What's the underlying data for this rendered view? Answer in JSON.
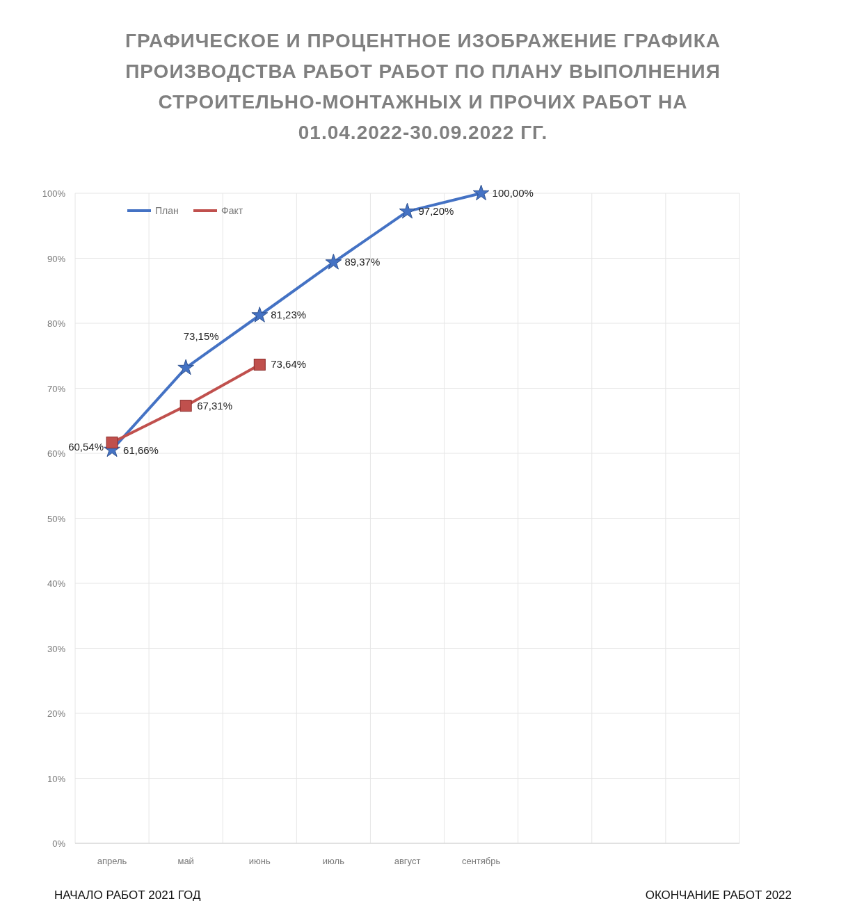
{
  "chart_data": {
    "type": "line",
    "title": "ГРАФИЧЕСКОЕ И ПРОЦЕНТНОЕ ИЗОБРАЖЕНИЕ ГРАФИКА ПРОИЗВОДСТВА РАБОТ РАБОТ ПО ПЛАНУ ВЫПОЛНЕНИЯ СТРОИТЕЛЬНО-МОНТАЖНЫХ И ПРОЧИХ РАБОТ НА 01.04.2022-30.09.2022 ГГ.",
    "categories": [
      "апрель",
      "май",
      "июнь",
      "июль",
      "август",
      "сентябрь",
      null,
      null,
      null
    ],
    "series": [
      {
        "name": "План",
        "color": "#4472c4",
        "marker": "star",
        "values": [
          60.54,
          73.15,
          81.23,
          89.37,
          97.2,
          100,
          null,
          null,
          null
        ],
        "value_labels": [
          "60,54%",
          "73,15%",
          "81,23%",
          "89,37%",
          "97,20%",
          "100,00%",
          null,
          null,
          null
        ]
      },
      {
        "name": "Факт",
        "color": "#c0504d",
        "marker": "square",
        "values": [
          61.66,
          67.31,
          73.64,
          null,
          null,
          null,
          null,
          null,
          null
        ],
        "value_labels": [
          "61,66%",
          "67,31%",
          "73,64%",
          null,
          null,
          null,
          null,
          null,
          null
        ]
      }
    ],
    "ylim": [
      0,
      100
    ],
    "yticks": [
      {
        "value": 0,
        "label": "0%"
      },
      {
        "value": 10,
        "label": "10%"
      },
      {
        "value": 20,
        "label": "20%"
      },
      {
        "value": 30,
        "label": "30%"
      },
      {
        "value": 40,
        "label": "40%"
      },
      {
        "value": 50,
        "label": "50%"
      },
      {
        "value": 60,
        "label": "60%"
      },
      {
        "value": 70,
        "label": "70%"
      },
      {
        "value": 80,
        "label": "80%"
      },
      {
        "value": 90,
        "label": "90%"
      },
      {
        "value": 100,
        "label": "100%"
      }
    ],
    "grid": true,
    "legend": "top left",
    "line_style": "solid",
    "annotations": [
      "НАЧАЛО РАБОТ 2021 ГОД",
      "ОКОНЧАНИЕ РАБОТ 2022"
    ]
  }
}
